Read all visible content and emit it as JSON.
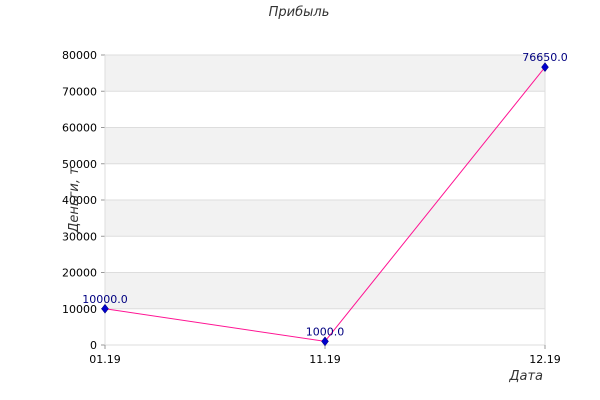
{
  "chart_data": {
    "type": "line",
    "title": "Прибыль",
    "xlabel": "Дата",
    "ylabel": "Деньги, т",
    "categories": [
      "01.19",
      "11.19",
      "12.19"
    ],
    "series": [
      {
        "values": [
          10000,
          1000,
          76650
        ],
        "labels": [
          "10000.0",
          "1000.0",
          "76650.0"
        ]
      }
    ],
    "y_ticks": [
      "0",
      "10000",
      "20000",
      "30000",
      "40000",
      "50000",
      "60000",
      "70000",
      "80000"
    ],
    "ylim": [
      0,
      80000
    ],
    "grid": "horizontal alternating bands",
    "colors": {
      "line": "#ff1493",
      "marker": "#0000cc",
      "band": "#f2f2f2",
      "grid": "#dddddd",
      "data_label": "#000080"
    }
  }
}
